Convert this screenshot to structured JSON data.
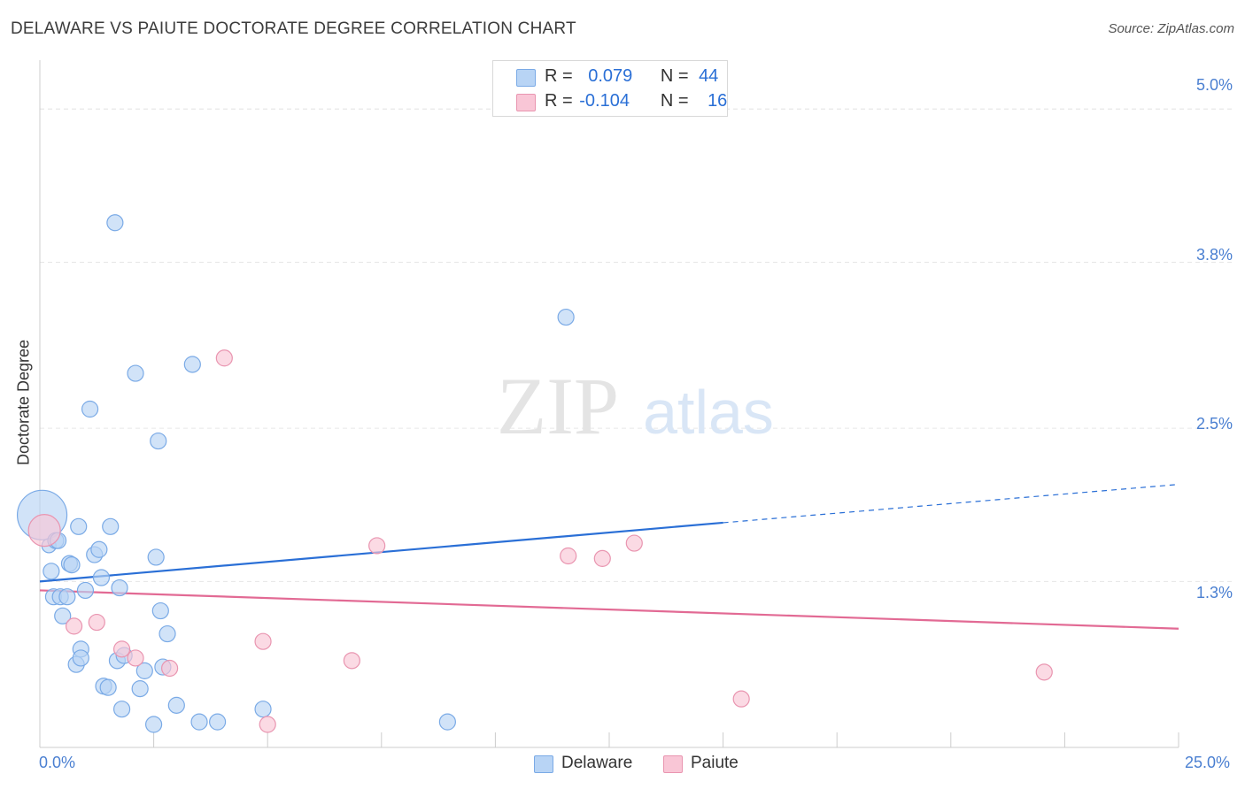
{
  "title": "DELAWARE VS PAIUTE DOCTORATE DEGREE CORRELATION CHART",
  "source": "Source: ZipAtlas.com",
  "watermark": {
    "zip": "ZIP",
    "atlas": "atlas"
  },
  "legend": {
    "delaware": {
      "r_label": "R =",
      "r_value": "0.079",
      "n_label": "N =",
      "n_value": "44"
    },
    "paiute": {
      "r_label": "R =",
      "r_value": "-0.104",
      "n_label": "N =",
      "n_value": "16"
    }
  },
  "bottom_legend": {
    "delaware": "Delaware",
    "paiute": "Paiute"
  },
  "colors": {
    "delaware_fill": "#b8d4f5",
    "delaware_stroke": "#7aaae6",
    "delaware_line": "#2a6fd6",
    "paiute_fill": "#f9c6d6",
    "paiute_stroke": "#e995b0",
    "paiute_line": "#e26a94",
    "tick_label": "#4a7fd1",
    "grid": "#e6e6e6"
  },
  "chart_data": {
    "type": "scatter",
    "title": "DELAWARE VS PAIUTE DOCTORATE DEGREE CORRELATION CHART",
    "xlabel": "",
    "ylabel": "Doctorate Degree",
    "xlim": [
      0,
      25
    ],
    "ylim": [
      0,
      5.3
    ],
    "x_tick_labels": [
      "0.0%",
      "25.0%"
    ],
    "y_ticks": [
      1.3,
      2.5,
      3.8,
      5.0
    ],
    "y_tick_labels": [
      "1.3%",
      "2.5%",
      "3.8%",
      "5.0%"
    ],
    "grid": "horizontal dashed",
    "legend_position": "top-center",
    "series": [
      {
        "name": "Delaware",
        "x": [
          0.05,
          0.2,
          0.25,
          0.3,
          0.35,
          0.4,
          0.45,
          0.5,
          0.6,
          0.65,
          0.7,
          0.8,
          0.85,
          0.9,
          0.9,
          1.0,
          1.1,
          1.2,
          1.3,
          1.35,
          1.4,
          1.5,
          1.55,
          1.65,
          1.7,
          1.75,
          1.8,
          1.85,
          2.1,
          2.2,
          2.3,
          2.5,
          2.55,
          2.6,
          2.65,
          2.7,
          2.8,
          3.0,
          3.35,
          3.5,
          3.9,
          4.9,
          8.95,
          11.55
        ],
        "y": [
          1.82,
          1.58,
          1.38,
          1.18,
          1.62,
          1.62,
          1.18,
          1.03,
          1.18,
          1.44,
          1.43,
          0.65,
          1.73,
          0.77,
          0.7,
          1.23,
          2.65,
          1.51,
          1.55,
          1.33,
          0.48,
          0.47,
          1.73,
          4.11,
          0.68,
          1.25,
          0.3,
          0.72,
          2.93,
          0.46,
          0.6,
          0.18,
          1.49,
          2.4,
          1.07,
          0.63,
          0.89,
          0.33,
          3.0,
          0.2,
          0.2,
          0.3,
          0.2,
          3.37
        ],
        "sizes": [
          28,
          8,
          9,
          9,
          9,
          9,
          9,
          9,
          9,
          9,
          9,
          9,
          9,
          9,
          9,
          9,
          9,
          9,
          9,
          9,
          9,
          9,
          9,
          9,
          9,
          9,
          9,
          9,
          9,
          9,
          9,
          9,
          9,
          9,
          9,
          9,
          9,
          9,
          9,
          9,
          9,
          9,
          9,
          9
        ]
      },
      {
        "name": "Paiute",
        "x": [
          0.1,
          0.75,
          1.25,
          1.8,
          2.1,
          2.85,
          4.05,
          4.9,
          5.0,
          6.85,
          7.4,
          11.6,
          12.35,
          13.05,
          15.4,
          22.05
        ],
        "y": [
          1.7,
          0.95,
          0.98,
          0.77,
          0.7,
          0.62,
          3.05,
          0.83,
          0.18,
          0.68,
          1.58,
          1.5,
          1.48,
          1.6,
          0.38,
          0.59
        ],
        "sizes": [
          18,
          9,
          9,
          9,
          9,
          9,
          9,
          9,
          9,
          9,
          9,
          9,
          9,
          9,
          9,
          9
        ]
      }
    ],
    "trendlines": [
      {
        "name": "Delaware",
        "x": [
          0,
          15
        ],
        "y": [
          1.3,
          1.76
        ],
        "dashed_extension": {
          "x": [
            15,
            25
          ],
          "y": [
            1.76,
            2.06
          ]
        }
      },
      {
        "name": "Paiute",
        "x": [
          0,
          25
        ],
        "y": [
          1.23,
          0.93
        ]
      }
    ]
  }
}
